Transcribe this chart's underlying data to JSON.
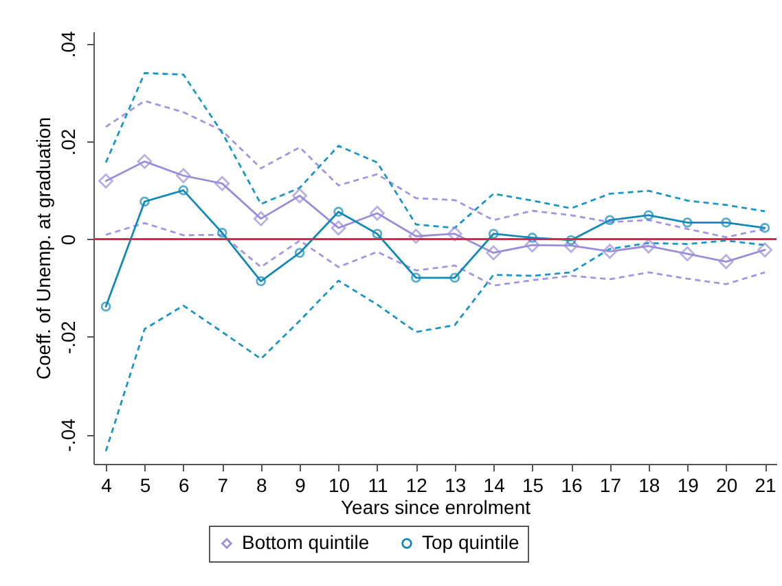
{
  "chart_data": {
    "type": "line",
    "xlabel": "Years since enrolment",
    "ylabel": "Coeff. of Unemp. at graduation",
    "x": [
      4,
      5,
      6,
      7,
      8,
      9,
      10,
      11,
      12,
      13,
      14,
      15,
      16,
      17,
      18,
      19,
      20,
      21
    ],
    "xlim": [
      3.68,
      21.3
    ],
    "xticks": [
      4,
      5,
      6,
      7,
      8,
      9,
      10,
      11,
      12,
      13,
      14,
      15,
      16,
      17,
      18,
      19,
      20,
      21
    ],
    "ylim": [
      -0.046,
      0.0425
    ],
    "yticks": [
      {
        "value": -0.04,
        "label": "-.04"
      },
      {
        "value": -0.02,
        "label": "-.02"
      },
      {
        "value": 0,
        "label": "0"
      },
      {
        "value": 0.02,
        "label": ".02"
      },
      {
        "value": 0.04,
        "label": ".04"
      }
    ],
    "grid": false,
    "legend": "bottom",
    "ref_lines": [
      {
        "axis": "y",
        "value": 0,
        "color": "#e0234e"
      }
    ],
    "series": [
      {
        "color": "#a593e6",
        "line_style": "dashed",
        "marker": "none",
        "values": [
          0.023,
          0.0283,
          0.026,
          0.0222,
          0.0145,
          0.0188,
          0.011,
          0.0133,
          0.0084,
          0.008,
          0.0039,
          0.0058,
          0.0049,
          0.0035,
          0.0039,
          0.0021,
          0.0004,
          0.0021
        ]
      },
      {
        "color": "#a593e6",
        "line_style": "dashed",
        "marker": "none",
        "values": [
          0.0009,
          0.0033,
          0.0008,
          0.0009,
          -0.0057,
          -0.0003,
          -0.0057,
          -0.0026,
          -0.0064,
          -0.0054,
          -0.0095,
          -0.0084,
          -0.0075,
          -0.0082,
          -0.0068,
          -0.0081,
          -0.0092,
          -0.0068
        ]
      },
      {
        "color": "#1a95c8",
        "line_style": "dashed",
        "marker": "none",
        "values": [
          0.0157,
          0.034,
          0.0337,
          0.0218,
          0.0072,
          0.0105,
          0.0191,
          0.0157,
          0.003,
          0.0023,
          0.0093,
          0.0079,
          0.0063,
          0.0093,
          0.0099,
          0.0079,
          0.007,
          0.0057
        ]
      },
      {
        "color": "#1a95c8",
        "line_style": "dashed",
        "marker": "none",
        "values": [
          -0.0434,
          -0.0184,
          -0.0136,
          -0.019,
          -0.0245,
          -0.0167,
          -0.0085,
          -0.0134,
          -0.019,
          -0.0176,
          -0.0073,
          -0.0075,
          -0.0068,
          -0.002,
          -0.0008,
          -0.001,
          -0.0003,
          -0.0012
        ]
      },
      {
        "name": "Bottom quintile",
        "color": "#9b8ddc",
        "line_style": "solid",
        "marker": "diamond",
        "values": [
          0.0119,
          0.0159,
          0.013,
          0.0114,
          0.0042,
          0.0089,
          0.0023,
          0.0053,
          0.0006,
          0.0011,
          -0.0028,
          -0.0012,
          -0.0013,
          -0.0025,
          -0.0014,
          -0.003,
          -0.0046,
          -0.0022
        ]
      },
      {
        "name": "Top quintile",
        "color": "#1289b8",
        "line_style": "solid",
        "marker": "circle",
        "values": [
          -0.0138,
          0.0077,
          0.01,
          0.0013,
          -0.0086,
          -0.0028,
          0.0056,
          0.0011,
          -0.0079,
          -0.0079,
          0.0011,
          0.0003,
          -0.0002,
          0.0039,
          0.0049,
          0.0034,
          0.0034,
          0.0023
        ]
      }
    ]
  }
}
